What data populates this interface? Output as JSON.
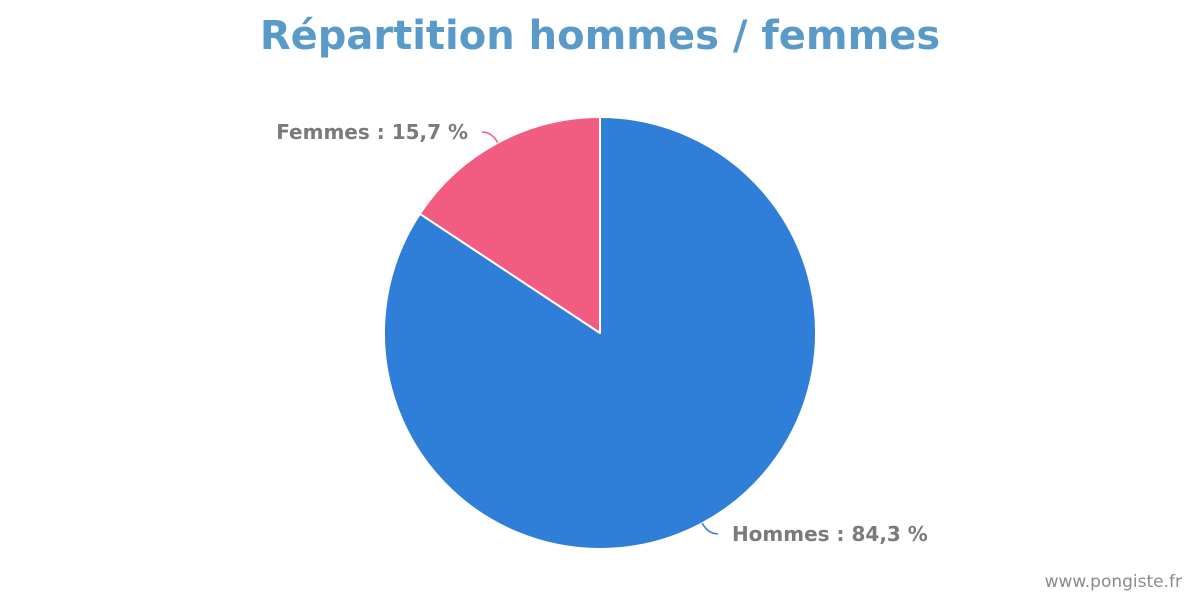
{
  "chart_data": {
    "type": "pie",
    "title": "Répartition hommes / femmes",
    "slices": [
      {
        "name": "Hommes",
        "value": 84.3,
        "label": "Hommes : 84,3 %",
        "color": "#2f7ed8"
      },
      {
        "name": "Femmes",
        "value": 15.7,
        "label": "Femmes : 15,7 %",
        "color": "#f15c80"
      }
    ],
    "start": "12 o'clock",
    "direction": "clockwise"
  },
  "watermark": "www.pongiste.fr"
}
